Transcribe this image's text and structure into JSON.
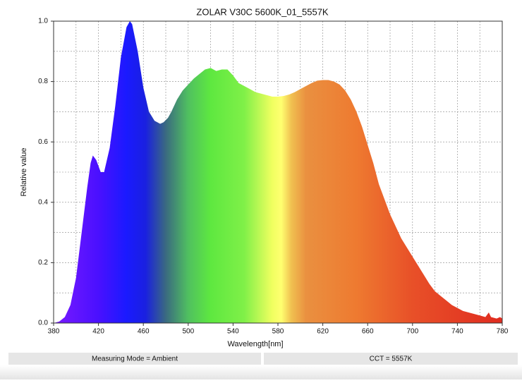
{
  "chart_data": {
    "type": "area",
    "title": "ZOLAR V30C 5600K_01_5557K",
    "x_label": "Wavelength[nm]",
    "y_label": "Relative value",
    "x": [
      380,
      385,
      390,
      395,
      400,
      405,
      410,
      413,
      415,
      418,
      422,
      425,
      430,
      435,
      440,
      445,
      448,
      450,
      455,
      460,
      465,
      470,
      475,
      478,
      482,
      485,
      490,
      495,
      500,
      505,
      510,
      515,
      520,
      525,
      530,
      535,
      540,
      545,
      550,
      555,
      560,
      565,
      570,
      575,
      580,
      585,
      590,
      595,
      600,
      605,
      610,
      615,
      620,
      625,
      630,
      635,
      640,
      645,
      650,
      655,
      660,
      665,
      670,
      675,
      680,
      685,
      690,
      695,
      700,
      705,
      710,
      715,
      720,
      725,
      730,
      735,
      740,
      745,
      750,
      755,
      760,
      765,
      768,
      770,
      775,
      778,
      780
    ],
    "values": [
      0,
      0.005,
      0.02,
      0.06,
      0.15,
      0.3,
      0.45,
      0.53,
      0.555,
      0.54,
      0.5,
      0.5,
      0.58,
      0.72,
      0.88,
      0.98,
      1.0,
      0.99,
      0.9,
      0.78,
      0.7,
      0.67,
      0.66,
      0.665,
      0.68,
      0.7,
      0.74,
      0.77,
      0.79,
      0.81,
      0.825,
      0.84,
      0.845,
      0.835,
      0.84,
      0.84,
      0.82,
      0.795,
      0.785,
      0.775,
      0.765,
      0.76,
      0.755,
      0.75,
      0.75,
      0.752,
      0.757,
      0.765,
      0.775,
      0.785,
      0.795,
      0.803,
      0.805,
      0.805,
      0.8,
      0.79,
      0.77,
      0.74,
      0.7,
      0.65,
      0.59,
      0.53,
      0.46,
      0.41,
      0.36,
      0.32,
      0.28,
      0.25,
      0.22,
      0.19,
      0.16,
      0.13,
      0.105,
      0.09,
      0.075,
      0.06,
      0.05,
      0.04,
      0.035,
      0.03,
      0.025,
      0.02,
      0.035,
      0.02,
      0.015,
      0.02,
      0.015
    ],
    "color_stops": [
      {
        "at": 380,
        "color": "#7a1aff"
      },
      {
        "at": 420,
        "color": "#4a10ff"
      },
      {
        "at": 445,
        "color": "#1a1aff"
      },
      {
        "at": 462,
        "color": "#1a20e0"
      },
      {
        "at": 480,
        "color": "#3a6a80"
      },
      {
        "at": 500,
        "color": "#50c060"
      },
      {
        "at": 520,
        "color": "#5ee840"
      },
      {
        "at": 550,
        "color": "#80f048"
      },
      {
        "at": 575,
        "color": "#f0ff60"
      },
      {
        "at": 583,
        "color": "#ffff70"
      },
      {
        "at": 592,
        "color": "#f0c050"
      },
      {
        "at": 605,
        "color": "#ea9040"
      },
      {
        "at": 650,
        "color": "#ee7a30"
      },
      {
        "at": 700,
        "color": "#e85028"
      },
      {
        "at": 780,
        "color": "#e02c20"
      }
    ],
    "xlim": [
      380,
      780
    ],
    "ylim": [
      0,
      1
    ],
    "xticks": [
      380,
      420,
      460,
      500,
      540,
      580,
      620,
      660,
      700,
      740,
      780
    ],
    "yticks": [
      {
        "value": 0,
        "label": "0.0"
      },
      0.2,
      0.4,
      0.6,
      0.8,
      {
        "value": 1,
        "label": "1.0"
      }
    ],
    "x_minor_grid": [
      400,
      440,
      480,
      520,
      560,
      600,
      640,
      680,
      720,
      760
    ],
    "y_minor_grid": [
      0.1,
      0.3,
      0.5,
      0.7,
      0.9
    ],
    "grid": true
  },
  "status_bar": {
    "measuring_mode": "Measuring Mode = Ambient",
    "cct": "CCT = 5557K"
  }
}
